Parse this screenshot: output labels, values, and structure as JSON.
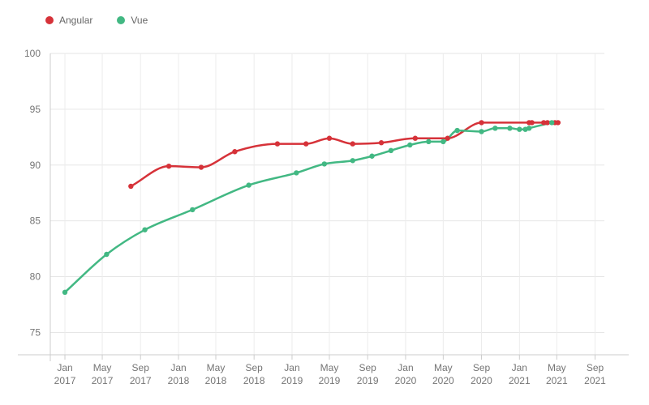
{
  "chart_data": {
    "type": "line",
    "legend_position": "top-left",
    "grid": true,
    "ylim": [
      73,
      100
    ],
    "xlim": [
      "2016-11-15",
      "2021-10-01"
    ],
    "y_ticks": [
      75,
      80,
      85,
      90,
      95,
      100
    ],
    "x_ticks": [
      {
        "date": "2017-01-01",
        "line1": "Jan",
        "line2": "2017"
      },
      {
        "date": "2017-05-01",
        "line1": "May",
        "line2": "2017"
      },
      {
        "date": "2017-09-01",
        "line1": "Sep",
        "line2": "2017"
      },
      {
        "date": "2018-01-01",
        "line1": "Jan",
        "line2": "2018"
      },
      {
        "date": "2018-05-01",
        "line1": "May",
        "line2": "2018"
      },
      {
        "date": "2018-09-01",
        "line1": "Sep",
        "line2": "2018"
      },
      {
        "date": "2019-01-01",
        "line1": "Jan",
        "line2": "2019"
      },
      {
        "date": "2019-05-01",
        "line1": "May",
        "line2": "2019"
      },
      {
        "date": "2019-09-01",
        "line1": "Sep",
        "line2": "2019"
      },
      {
        "date": "2020-01-01",
        "line1": "Jan",
        "line2": "2020"
      },
      {
        "date": "2020-05-01",
        "line1": "May",
        "line2": "2020"
      },
      {
        "date": "2020-09-01",
        "line1": "Sep",
        "line2": "2020"
      },
      {
        "date": "2021-01-01",
        "line1": "Jan",
        "line2": "2021"
      },
      {
        "date": "2021-05-01",
        "line1": "May",
        "line2": "2021"
      },
      {
        "date": "2021-09-01",
        "line1": "Sep",
        "line2": "2021"
      }
    ],
    "series": [
      {
        "name": "Angular",
        "color": "#d63239",
        "points": [
          [
            "2017-08-01",
            88.1
          ],
          [
            "2017-12-01",
            89.9
          ],
          [
            "2018-03-15",
            89.8
          ],
          [
            "2018-07-01",
            91.2
          ],
          [
            "2018-11-15",
            91.9
          ],
          [
            "2019-02-15",
            91.9
          ],
          [
            "2019-05-01",
            92.4
          ],
          [
            "2019-07-15",
            91.9
          ],
          [
            "2019-10-15",
            92.0
          ],
          [
            "2020-02-01",
            92.4
          ],
          [
            "2020-05-15",
            92.4
          ],
          [
            "2020-09-01",
            93.8
          ],
          [
            "2021-02-01",
            93.8
          ],
          [
            "2021-02-10",
            93.8
          ],
          [
            "2021-03-20",
            93.8
          ],
          [
            "2021-04-01",
            93.8
          ],
          [
            "2021-04-25",
            93.8
          ],
          [
            "2021-05-05",
            93.8
          ]
        ]
      },
      {
        "name": "Vue",
        "color": "#42b883",
        "points": [
          [
            "2017-01-01",
            78.6
          ],
          [
            "2017-05-15",
            82.0
          ],
          [
            "2017-09-15",
            84.2
          ],
          [
            "2018-02-15",
            86.0
          ],
          [
            "2018-08-15",
            88.2
          ],
          [
            "2019-01-15",
            89.3
          ],
          [
            "2019-04-15",
            90.1
          ],
          [
            "2019-07-15",
            90.4
          ],
          [
            "2019-09-15",
            90.8
          ],
          [
            "2019-11-15",
            91.3
          ],
          [
            "2020-01-15",
            91.8
          ],
          [
            "2020-03-15",
            92.1
          ],
          [
            "2020-05-01",
            92.1
          ],
          [
            "2020-06-15",
            93.1
          ],
          [
            "2020-09-01",
            93.0
          ],
          [
            "2020-10-15",
            93.3
          ],
          [
            "2020-12-01",
            93.3
          ],
          [
            "2021-01-01",
            93.2
          ],
          [
            "2021-01-20",
            93.2
          ],
          [
            "2021-02-01",
            93.3
          ],
          [
            "2021-04-15",
            93.8
          ]
        ]
      }
    ]
  }
}
